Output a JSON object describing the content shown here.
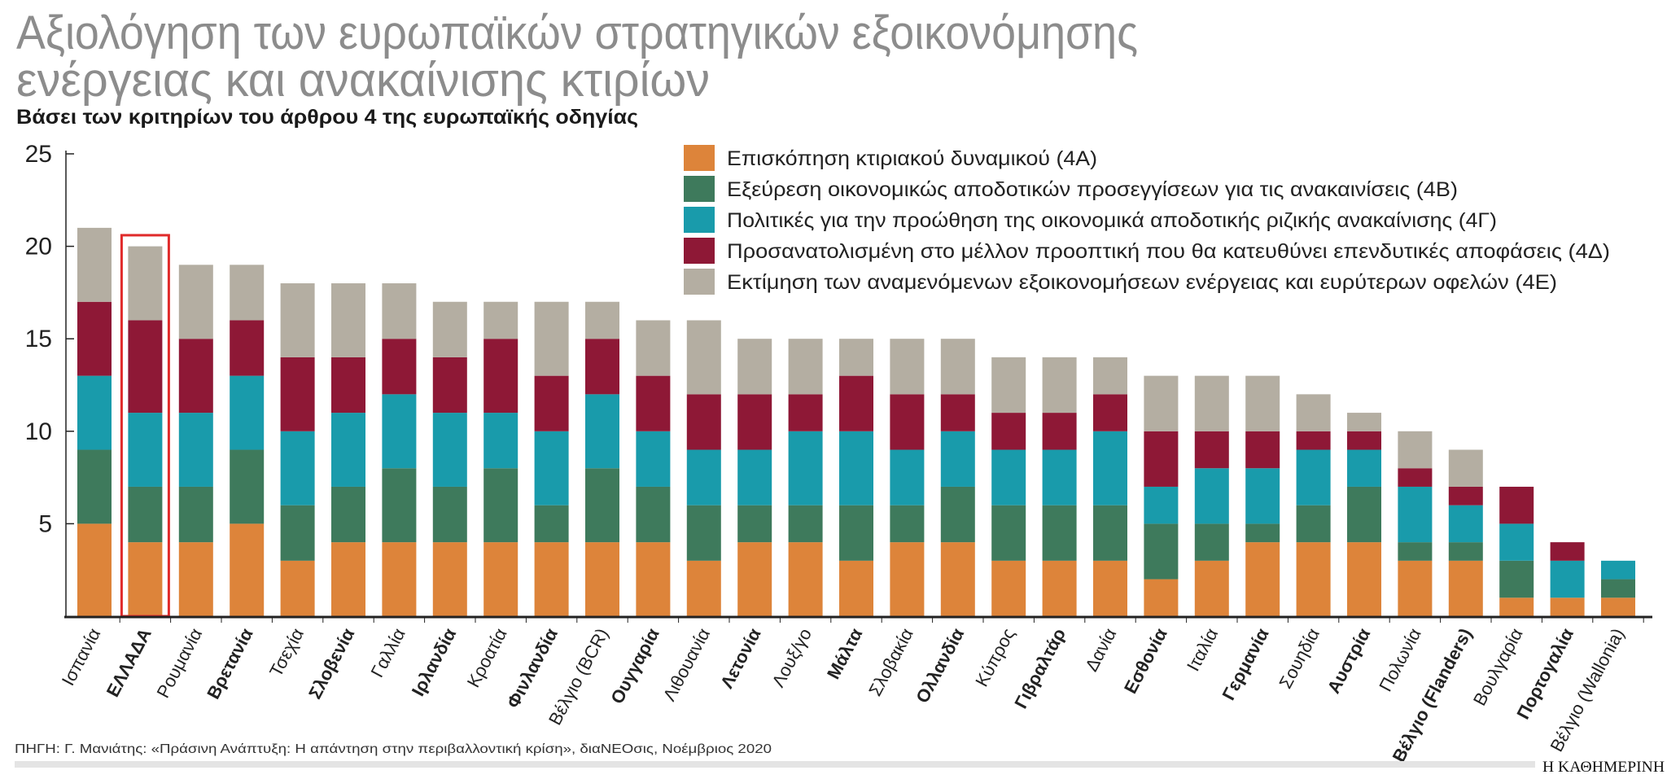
{
  "header": {
    "title_lines": [
      "Αξιολόγηση των ευρωπαϊκών στρατηγικών εξοικονόμησης",
      "ενέργειας και ανακαίνισης κτιρίων"
    ],
    "subtitle": "Βάσει των κριτηρίων του άρθρου 4 της ευρωπαϊκής οδηγίας"
  },
  "footer": {
    "source": "ΠΗΓΗ: Γ. Μανιάτης: «Πράσινη Ανάπτυξη: Η απάντηση στην περιβαλλοντική κρίση», διαΝΕΟσις, Νοέμβριος 2020",
    "logo": "Η ΚΑΘΗΜΕΡΙΝΗ"
  },
  "chart_data": {
    "type": "bar",
    "stacked": true,
    "title": "Αξιολόγηση των ευρωπαϊκών στρατηγικών εξοικονόμησης ενέργειας και ανακαίνισης κτιρίων",
    "subtitle": "Βάσει των κριτηρίων του άρθρου 4 της ευρωπαϊκής οδηγίας",
    "xlabel": "",
    "ylabel": "",
    "ylim": [
      0,
      25
    ],
    "yticks": [
      5,
      10,
      15,
      20,
      25
    ],
    "grid": false,
    "legend_position": "top-right",
    "highlighted_category": "ΕΛΛΑΔΑ",
    "highlight_color": "#e02a2a",
    "categories": [
      "Ισπανία",
      "ΕΛΛΑΔΑ",
      "Ρουμανία",
      "Βρετανία",
      "Τσεχία",
      "Σλοβενία",
      "Γαλλία",
      "Ιρλανδία",
      "Κροατία",
      "Φινλανδία",
      "Βέλγιο (BCR)",
      "Ουγγαρία",
      "Λιθουανία",
      "Λετονία",
      "Λουξ/γο",
      "Μάλτα",
      "Σλοβακία",
      "Ολλανδία",
      "Κύπρος",
      "Γιβραλτάρ",
      "Δανία",
      "Εσθονία",
      "Ιταλία",
      "Γερμανία",
      "Σουηδία",
      "Αυστρία",
      "Πολωνία",
      "Βέλγιο (Flanders)",
      "Βουλγαρία",
      "Πορτογαλία",
      "Βέλγιο (Wallonia)"
    ],
    "bold_categories": [
      "ΕΛΛΑΔΑ",
      "Βρετανία",
      "Σλοβενία",
      "Ιρλανδία",
      "Φινλανδία",
      "Ουγγαρία",
      "Λετονία",
      "Μάλτα",
      "Ολλανδία",
      "Γιβραλτάρ",
      "Εσθονία",
      "Γερμανία",
      "Αυστρία",
      "Βέλγιο (Flanders)",
      "Πορτογαλία"
    ],
    "series": [
      {
        "name": "Επισκόπηση κτιριακού δυναμικού (4Α)",
        "color": "#dd843a",
        "values": [
          5,
          4,
          4,
          5,
          3,
          4,
          4,
          4,
          4,
          4,
          4,
          4,
          3,
          4,
          4,
          3,
          4,
          4,
          3,
          3,
          3,
          2,
          3,
          4,
          4,
          4,
          3,
          3,
          1,
          1,
          1
        ]
      },
      {
        "name": "Εξεύρεση οικονομικώς αποδοτικών προσεγγίσεων για τις ανακαινίσεις (4Β)",
        "color": "#3e7a5c",
        "values": [
          4,
          3,
          3,
          4,
          3,
          3,
          4,
          3,
          4,
          2,
          4,
          3,
          3,
          2,
          2,
          3,
          2,
          3,
          3,
          3,
          3,
          3,
          2,
          1,
          2,
          3,
          1,
          1,
          2,
          0,
          1
        ]
      },
      {
        "name": "Πολιτικές για την προώθηση της οικονομικά αποδοτικής ριζικής ανακαίνισης (4Γ)",
        "color": "#199bab",
        "values": [
          4,
          4,
          4,
          4,
          4,
          4,
          4,
          4,
          3,
          4,
          4,
          3,
          3,
          3,
          4,
          4,
          3,
          3,
          3,
          3,
          4,
          2,
          3,
          3,
          3,
          2,
          3,
          2,
          2,
          2,
          1
        ]
      },
      {
        "name": "Προσανατολισμένη στο μέλλον προοπτική που θα κατευθύνει επενδυτικές αποφάσεις (4Δ)",
        "color": "#8e1836",
        "values": [
          4,
          5,
          4,
          3,
          4,
          3,
          3,
          3,
          4,
          3,
          3,
          3,
          3,
          3,
          2,
          3,
          3,
          2,
          2,
          2,
          2,
          3,
          2,
          2,
          1,
          1,
          1,
          1,
          2,
          1,
          0
        ]
      },
      {
        "name": "Εκτίμηση των αναμενόμενων εξοικονομήσεων ενέργειας και ευρύτερων οφελών (4Ε)",
        "color": "#b4aea2",
        "values": [
          4,
          4,
          4,
          3,
          4,
          4,
          3,
          3,
          2,
          4,
          2,
          3,
          4,
          3,
          3,
          2,
          3,
          3,
          3,
          3,
          2,
          3,
          3,
          3,
          2,
          1,
          2,
          2,
          0,
          0,
          0
        ]
      }
    ]
  }
}
